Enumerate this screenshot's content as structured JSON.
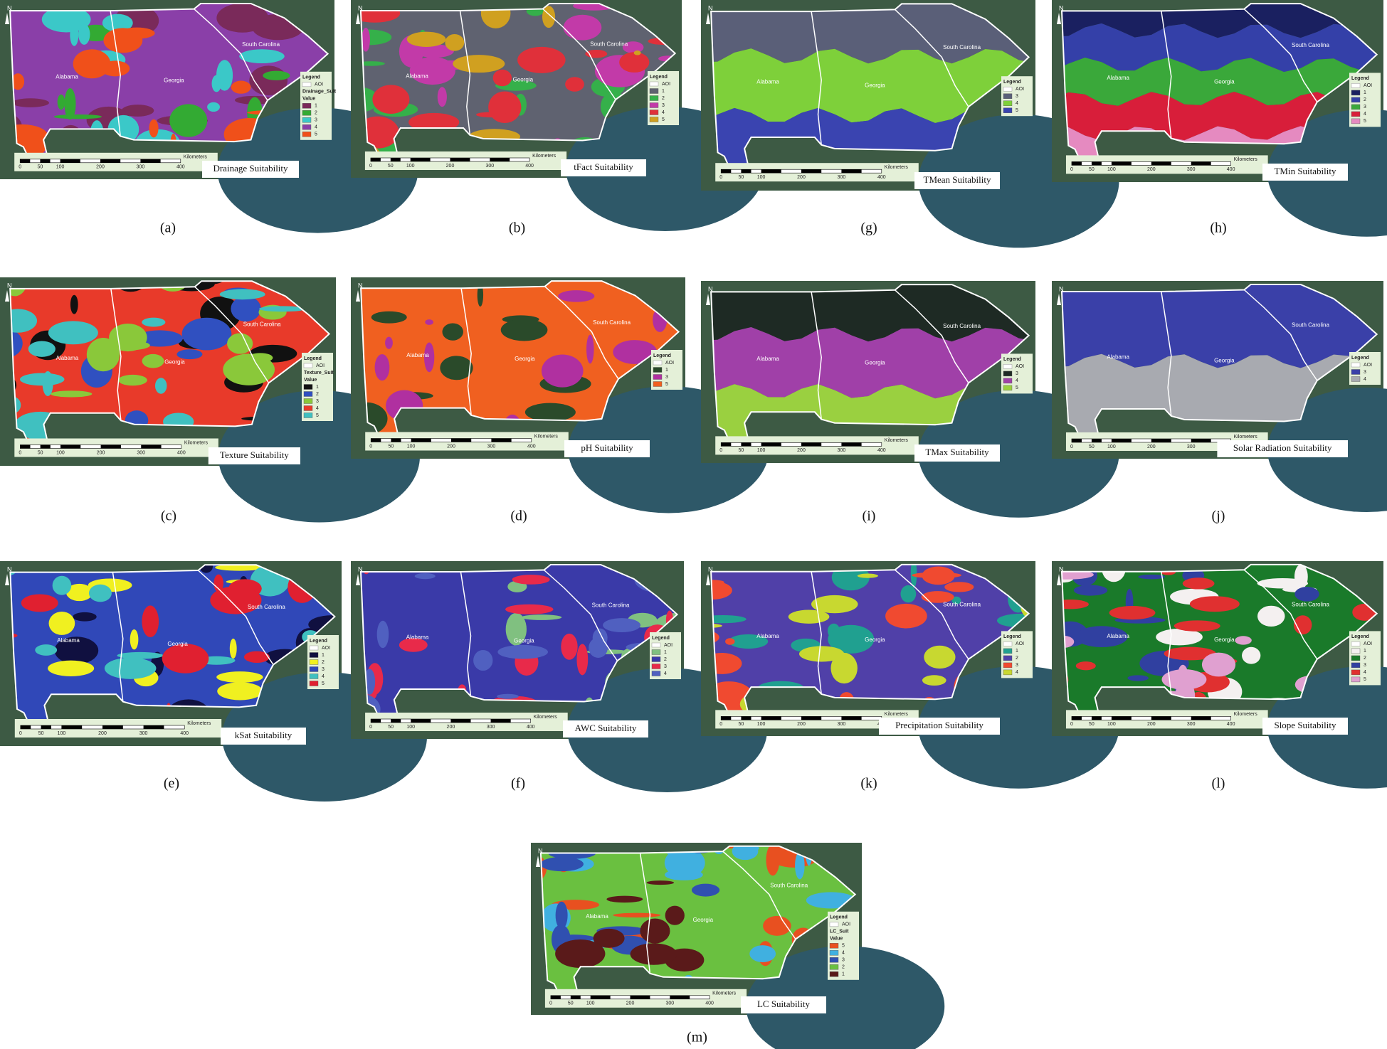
{
  "north": "N",
  "states": [
    "Alabama",
    "Georgia",
    "South Carolina"
  ],
  "scale": {
    "unit": "Kilometers",
    "ticks": [
      0,
      50,
      100,
      200,
      300,
      400
    ]
  },
  "panels": [
    {
      "caption": "(a)",
      "title": "Drainage Suitability",
      "pattern": "patches",
      "base": 3,
      "legend": {
        "title": "Legend",
        "aoi": "AOI",
        "field": "Drainage_Suit",
        "subfield": "Value",
        "items": [
          {
            "label": "1",
            "color": "#7a2a5a"
          },
          {
            "label": "2",
            "color": "#33aa33"
          },
          {
            "label": "3",
            "color": "#3bc8c8"
          },
          {
            "label": "4",
            "color": "#8a3fa8"
          },
          {
            "label": "5",
            "color": "#f0501a"
          }
        ]
      }
    },
    {
      "caption": "(b)",
      "title": "tFact Suitability",
      "pattern": "patches",
      "base": 0,
      "legend": {
        "title": "Legend",
        "aoi": "AOI",
        "items": [
          {
            "label": "1",
            "color": "#5f6270"
          },
          {
            "label": "2",
            "color": "#35b04a"
          },
          {
            "label": "3",
            "color": "#c23aa8"
          },
          {
            "label": "4",
            "color": "#e0303a"
          },
          {
            "label": "5",
            "color": "#d0a020"
          }
        ]
      }
    },
    {
      "caption": "(c)",
      "title": "Texture Suitability",
      "pattern": "patches",
      "base": 3,
      "legend": {
        "title": "Legend",
        "aoi": "AOI",
        "field": "Texture_Suit",
        "subfield": "Value",
        "items": [
          {
            "label": "1",
            "color": "#111111"
          },
          {
            "label": "2",
            "color": "#3050c0"
          },
          {
            "label": "3",
            "color": "#8ac83a"
          },
          {
            "label": "4",
            "color": "#e83a2a"
          },
          {
            "label": "5",
            "color": "#40c0c0"
          }
        ]
      }
    },
    {
      "caption": "(d)",
      "title": "pH Suitability",
      "pattern": "patches",
      "base": 2,
      "legend": {
        "title": "Legend",
        "aoi": "AOI",
        "items": [
          {
            "label": "1",
            "color": "#2a4a2a"
          },
          {
            "label": "3",
            "color": "#b030a0"
          },
          {
            "label": "5",
            "color": "#f06020"
          }
        ]
      }
    },
    {
      "caption": "(e)",
      "title": "kSat Suitability",
      "pattern": "patches",
      "base": 2,
      "legend": {
        "title": "Legend",
        "aoi": "AOI",
        "items": [
          {
            "label": "1",
            "color": "#101040"
          },
          {
            "label": "2",
            "color": "#f0f020"
          },
          {
            "label": "3",
            "color": "#3048b8"
          },
          {
            "label": "4",
            "color": "#40c0c0"
          },
          {
            "label": "5",
            "color": "#e02030"
          }
        ]
      }
    },
    {
      "caption": "(f)",
      "title": "AWC Suitability",
      "pattern": "patches",
      "base": 1,
      "legend": {
        "title": "Legend",
        "aoi": "AOI",
        "items": [
          {
            "label": "1",
            "color": "#80c080"
          },
          {
            "label": "2",
            "color": "#3a3aa8"
          },
          {
            "label": "3",
            "color": "#e82a4a"
          },
          {
            "label": "4",
            "color": "#5060c0"
          }
        ]
      }
    },
    {
      "caption": "(g)",
      "title": "TMean Suitability",
      "pattern": "bands",
      "base": 0,
      "legend": {
        "title": "Legend",
        "aoi": "AOI",
        "items": [
          {
            "label": "3",
            "color": "#5a5f78"
          },
          {
            "label": "4",
            "color": "#7ed03a"
          },
          {
            "label": "5",
            "color": "#3a44b0"
          }
        ]
      }
    },
    {
      "caption": "(h)",
      "title": "TMin Suitability",
      "pattern": "bands",
      "base": 0,
      "legend": {
        "title": "Legend",
        "aoi": "AOI",
        "items": [
          {
            "label": "1",
            "color": "#1a2060"
          },
          {
            "label": "2",
            "color": "#3440a8"
          },
          {
            "label": "3",
            "color": "#3aa83a"
          },
          {
            "label": "4",
            "color": "#d81e3a"
          },
          {
            "label": "5",
            "color": "#e58ac0"
          }
        ]
      }
    },
    {
      "caption": "(i)",
      "title": "TMax Suitability",
      "pattern": "bands",
      "base": 0,
      "legend": {
        "title": "Legend",
        "aoi": "AOI",
        "items": [
          {
            "label": "3",
            "color": "#1e2a24"
          },
          {
            "label": "4",
            "color": "#a040a8"
          },
          {
            "label": "5",
            "color": "#9ad040"
          }
        ]
      }
    },
    {
      "caption": "(j)",
      "title": "Solar Radiation Suitability",
      "pattern": "bands",
      "base": 0,
      "legend": {
        "title": "Legend",
        "aoi": "AOI",
        "items": [
          {
            "label": "3",
            "color": "#3a40a8"
          },
          {
            "label": "4",
            "color": "#a8aab0"
          }
        ]
      }
    },
    {
      "caption": "(k)",
      "title": "Precipitation Suitability",
      "pattern": "patches",
      "base": 1,
      "legend": {
        "title": "Legend",
        "aoi": "AOI",
        "items": [
          {
            "label": "1",
            "color": "#20a090"
          },
          {
            "label": "2",
            "color": "#5040a8"
          },
          {
            "label": "3",
            "color": "#f04a30"
          },
          {
            "label": "4",
            "color": "#c8d830"
          }
        ]
      }
    },
    {
      "caption": "(l)",
      "title": "Slope Suitability",
      "pattern": "patches",
      "base": 1,
      "legend": {
        "title": "Legend",
        "aoi": "AOI",
        "items": [
          {
            "label": "1",
            "color": "#f4f0f0"
          },
          {
            "label": "2",
            "color": "#1a7a2a"
          },
          {
            "label": "3",
            "color": "#3040a0"
          },
          {
            "label": "4",
            "color": "#e03030"
          },
          {
            "label": "5",
            "color": "#e0a0d0"
          }
        ]
      }
    },
    {
      "caption": "(m)",
      "title": "LC Suitability",
      "pattern": "patches",
      "base": 3,
      "legend": {
        "title": "Legend",
        "aoi": "AOI",
        "field": "LC_Suit",
        "subfield": "Value",
        "items": [
          {
            "label": "5",
            "color": "#e85020"
          },
          {
            "label": "4",
            "color": "#40b0e0"
          },
          {
            "label": "3",
            "color": "#3050b0"
          },
          {
            "label": "2",
            "color": "#6ac040"
          },
          {
            "label": "1",
            "color": "#5a1a1a"
          }
        ]
      }
    }
  ]
}
